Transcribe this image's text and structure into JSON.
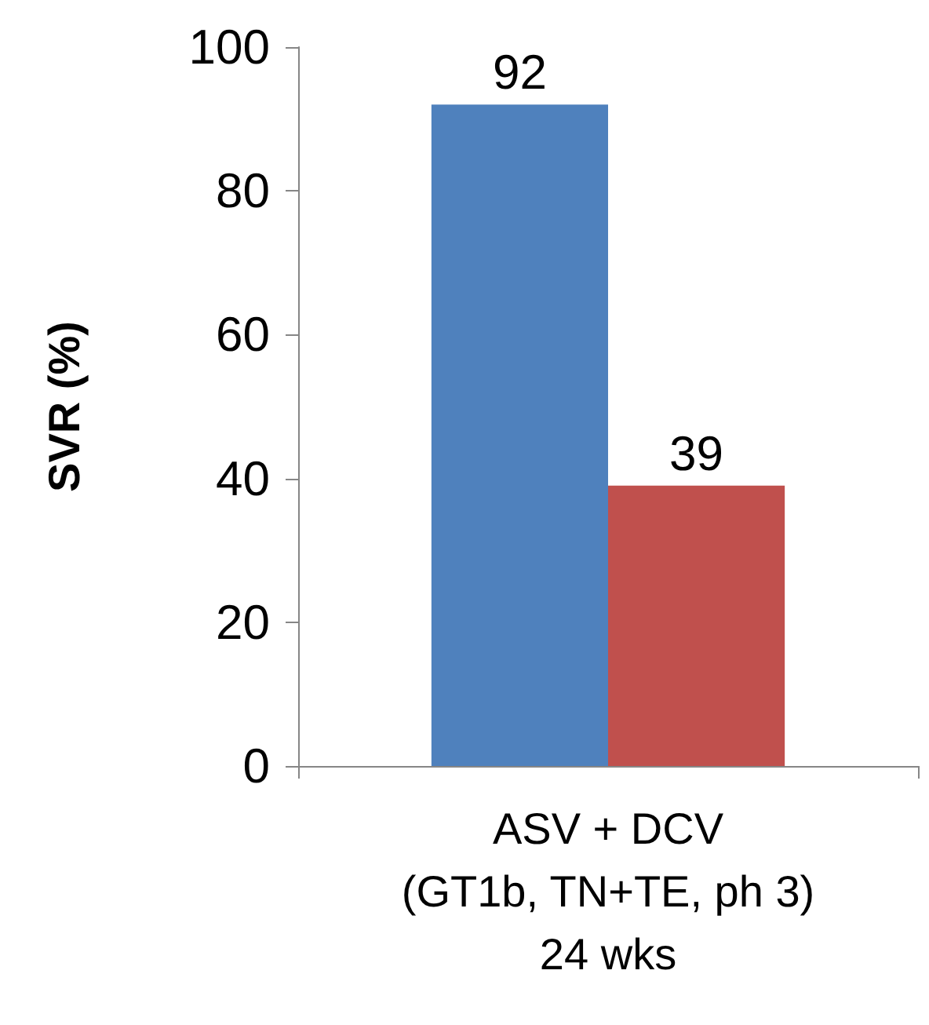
{
  "chart_data": {
    "type": "bar",
    "ylabel": "SVR (%)",
    "categories": [
      "ASV + DCV\n(GT1b, TN+TE, ph 3)\n24 wks"
    ],
    "series": [
      {
        "color": "#4f81bd",
        "values": [
          92
        ]
      },
      {
        "color": "#c0504d",
        "values": [
          39
        ]
      }
    ],
    "ylim": [
      0,
      100
    ],
    "yticks": [
      0,
      20,
      40,
      60,
      80,
      100
    ],
    "data_labels": true
  }
}
